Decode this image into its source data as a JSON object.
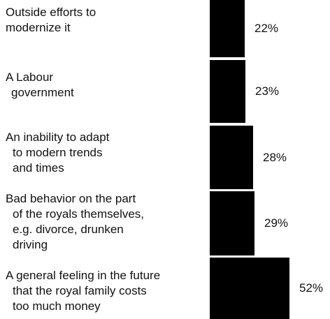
{
  "chart_data": {
    "type": "bar",
    "orientation": "horizontal",
    "categories": [
      "Outside efforts to\nmodernize it",
      "A Labour\ngovernment",
      "An inability to adapt\nto modern trends\nand times",
      "Bad behavior on the part\nof the royals themselves,\ne.g. divorce, drunken\ndriving",
      "A general feeling in the future\nthat the royal family costs\ntoo much money"
    ],
    "values": [
      22,
      23,
      28,
      29,
      52
    ],
    "value_labels": [
      "22%",
      "23%",
      "28%",
      "29%",
      "52%"
    ],
    "title": "",
    "xlabel": "",
    "ylabel": "",
    "xlim": [
      0,
      52
    ],
    "grid": false,
    "bar_color": "#000000"
  }
}
